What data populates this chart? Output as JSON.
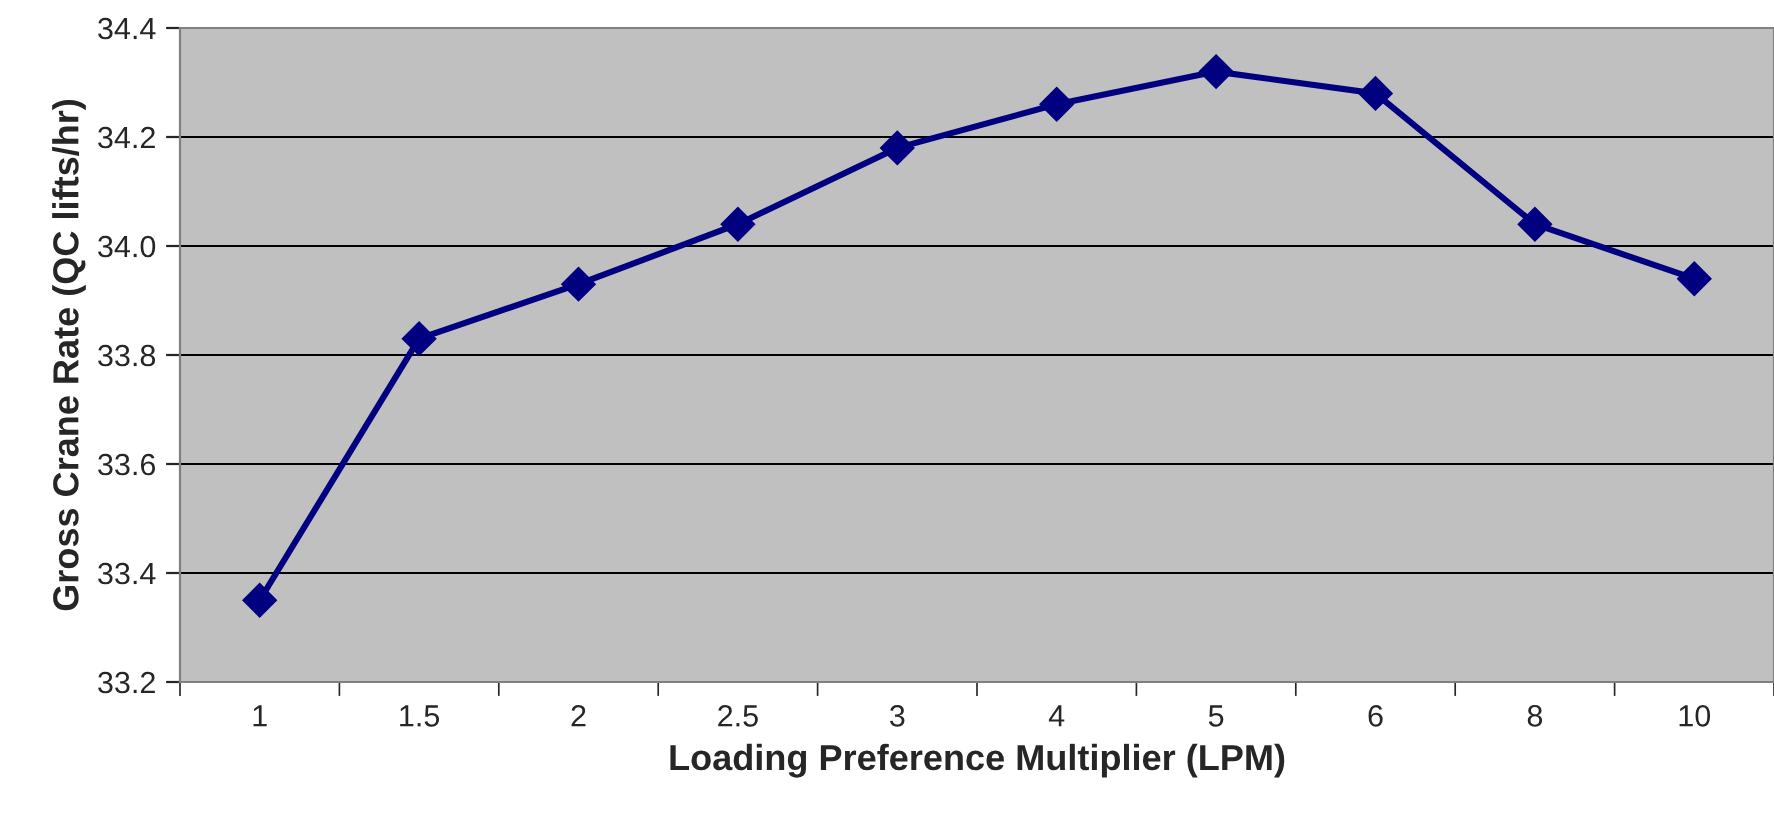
{
  "chart_data": {
    "type": "line",
    "xlabel": "Loading Preference Multiplier (LPM)",
    "ylabel": "Gross Crane Rate (QC lifts/hr)",
    "categories": [
      "1",
      "1.5",
      "2",
      "2.5",
      "3",
      "4",
      "5",
      "6",
      "8",
      "10"
    ],
    "series": [
      {
        "color": "#000080",
        "values": [
          33.35,
          33.83,
          33.93,
          34.04,
          34.18,
          34.26,
          34.32,
          34.28,
          34.04,
          33.94
        ]
      }
    ],
    "ylim": [
      33.2,
      34.4
    ],
    "yticks": [
      {
        "value": 33.2,
        "label": "33.2"
      },
      {
        "value": 33.4,
        "label": "33.4"
      },
      {
        "value": 33.6,
        "label": "33.6"
      },
      {
        "value": 33.8,
        "label": "33.8"
      },
      {
        "value": 34.0,
        "label": "34.0"
      },
      {
        "value": 34.2,
        "label": "34.2"
      },
      {
        "value": 34.4,
        "label": "34.4"
      }
    ],
    "grid": "y",
    "marker": "diamond",
    "line_style": "solid",
    "legend": false
  }
}
